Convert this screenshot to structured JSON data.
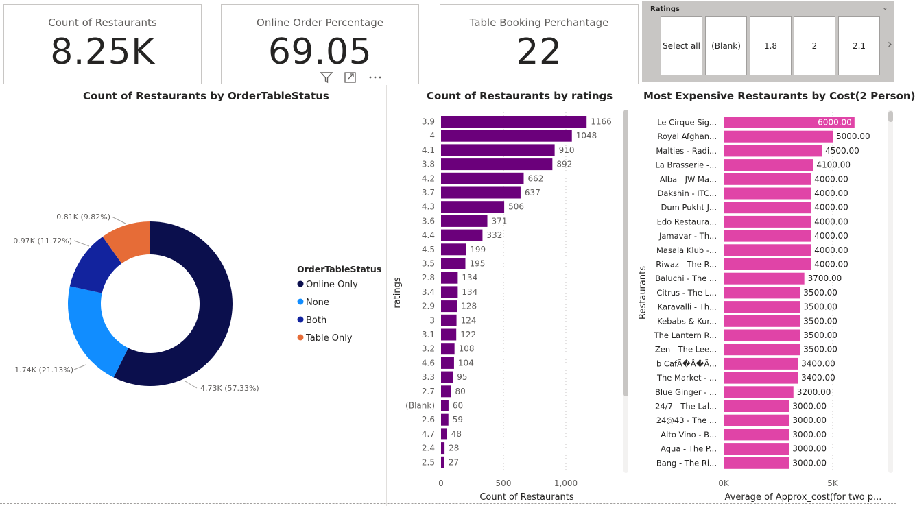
{
  "cards": [
    {
      "title": "Count of Restaurants",
      "value": "8.25K"
    },
    {
      "title": "Online Order Percentage",
      "value": "69.05"
    },
    {
      "title": "Table Booking Perchantage",
      "value": "22"
    }
  ],
  "slicer": {
    "title": "Ratings",
    "tiles": [
      "Select all",
      "(Blank)",
      "1.8",
      "2",
      "2.1"
    ]
  },
  "visual_header_icons": [
    "filter-icon",
    "focus-mode-icon",
    "more-options-icon"
  ],
  "chart_data": [
    {
      "type": "pie",
      "title": "Count of Restaurants by OrderTableStatus",
      "legend_title": "OrderTableStatus",
      "legend_position": "right",
      "categories": [
        "Online Only",
        "None",
        "Both",
        "Table Only"
      ],
      "values": [
        4730,
        1740,
        970,
        810
      ],
      "percentages": [
        57.33,
        21.13,
        11.72,
        9.82
      ],
      "data_labels": [
        "4.73K (57.33%)",
        "1.74K (21.13%)",
        "0.97K (11.72%)",
        "0.81K (9.82%)"
      ],
      "colors": [
        "#0b0f4d",
        "#118dff",
        "#12239e",
        "#e66c37"
      ]
    },
    {
      "type": "bar",
      "orientation": "horizontal",
      "title": "Count of Restaurants by ratings",
      "xlabel": "Count of Restaurants",
      "ylabel": "ratings",
      "categories": [
        "3.9",
        "4",
        "4.1",
        "3.8",
        "4.2",
        "3.7",
        "4.3",
        "3.6",
        "4.4",
        "4.5",
        "3.5",
        "2.8",
        "3.4",
        "2.9",
        "3",
        "3.1",
        "3.2",
        "4.6",
        "3.3",
        "2.7",
        "(Blank)",
        "2.6",
        "4.7",
        "2.4",
        "2.5"
      ],
      "values": [
        1166,
        1048,
        910,
        892,
        662,
        637,
        506,
        371,
        332,
        199,
        195,
        134,
        134,
        128,
        124,
        122,
        108,
        104,
        95,
        80,
        60,
        59,
        48,
        28,
        27
      ],
      "xticks": [
        "0",
        "500",
        "1,000"
      ],
      "xlim": [
        0,
        1250
      ],
      "color": "#6b007b"
    },
    {
      "type": "bar",
      "orientation": "horizontal",
      "title": "Most Expensive Restaurants by Cost(2 Person)",
      "xlabel": "Average of Approx_cost(for two p...",
      "ylabel": "Restaurants",
      "categories": [
        "Le Cirque Sig...",
        "Royal Afghan...",
        "Malties - Radi...",
        "La Brasserie -...",
        "Alba - JW Ma...",
        "Dakshin - ITC...",
        "Dum Pukht J...",
        "Edo Restaura...",
        "Jamavar - Th...",
        "Masala Klub -...",
        "Riwaz - The R...",
        "Baluchi - The ...",
        "Citrus - The L...",
        "Karavalli - Th...",
        "Kebabs & Kur...",
        "The Lantern R...",
        "Zen - The Lee...",
        "b CafÃ�Â�Ã...",
        "The Market - ...",
        "Blue Ginger - ...",
        "24/7 - The Lal...",
        "24@43 - The ...",
        "Alto Vino - B...",
        "Aqua - The P...",
        "Bang - The Ri..."
      ],
      "values": [
        6000,
        5000,
        4500,
        4100,
        4000,
        4000,
        4000,
        4000,
        4000,
        4000,
        4000,
        3700,
        3500,
        3500,
        3500,
        3500,
        3500,
        3400,
        3400,
        3200,
        3000,
        3000,
        3000,
        3000,
        3000
      ],
      "data_labels": [
        "6000.00",
        "5000.00",
        "4500.00",
        "4100.00",
        "4000.00",
        "4000.00",
        "4000.00",
        "4000.00",
        "4000.00",
        "4000.00",
        "4000.00",
        "3700.00",
        "3500.00",
        "3500.00",
        "3500.00",
        "3500.00",
        "3500.00",
        "3400.00",
        "3400.00",
        "3200.00",
        "3000.00",
        "3000.00",
        "3000.00",
        "3000.00",
        "3000.00"
      ],
      "xticks": [
        "0K",
        "5K"
      ],
      "xlim": [
        0,
        7500
      ],
      "color": "#e044a7"
    }
  ]
}
